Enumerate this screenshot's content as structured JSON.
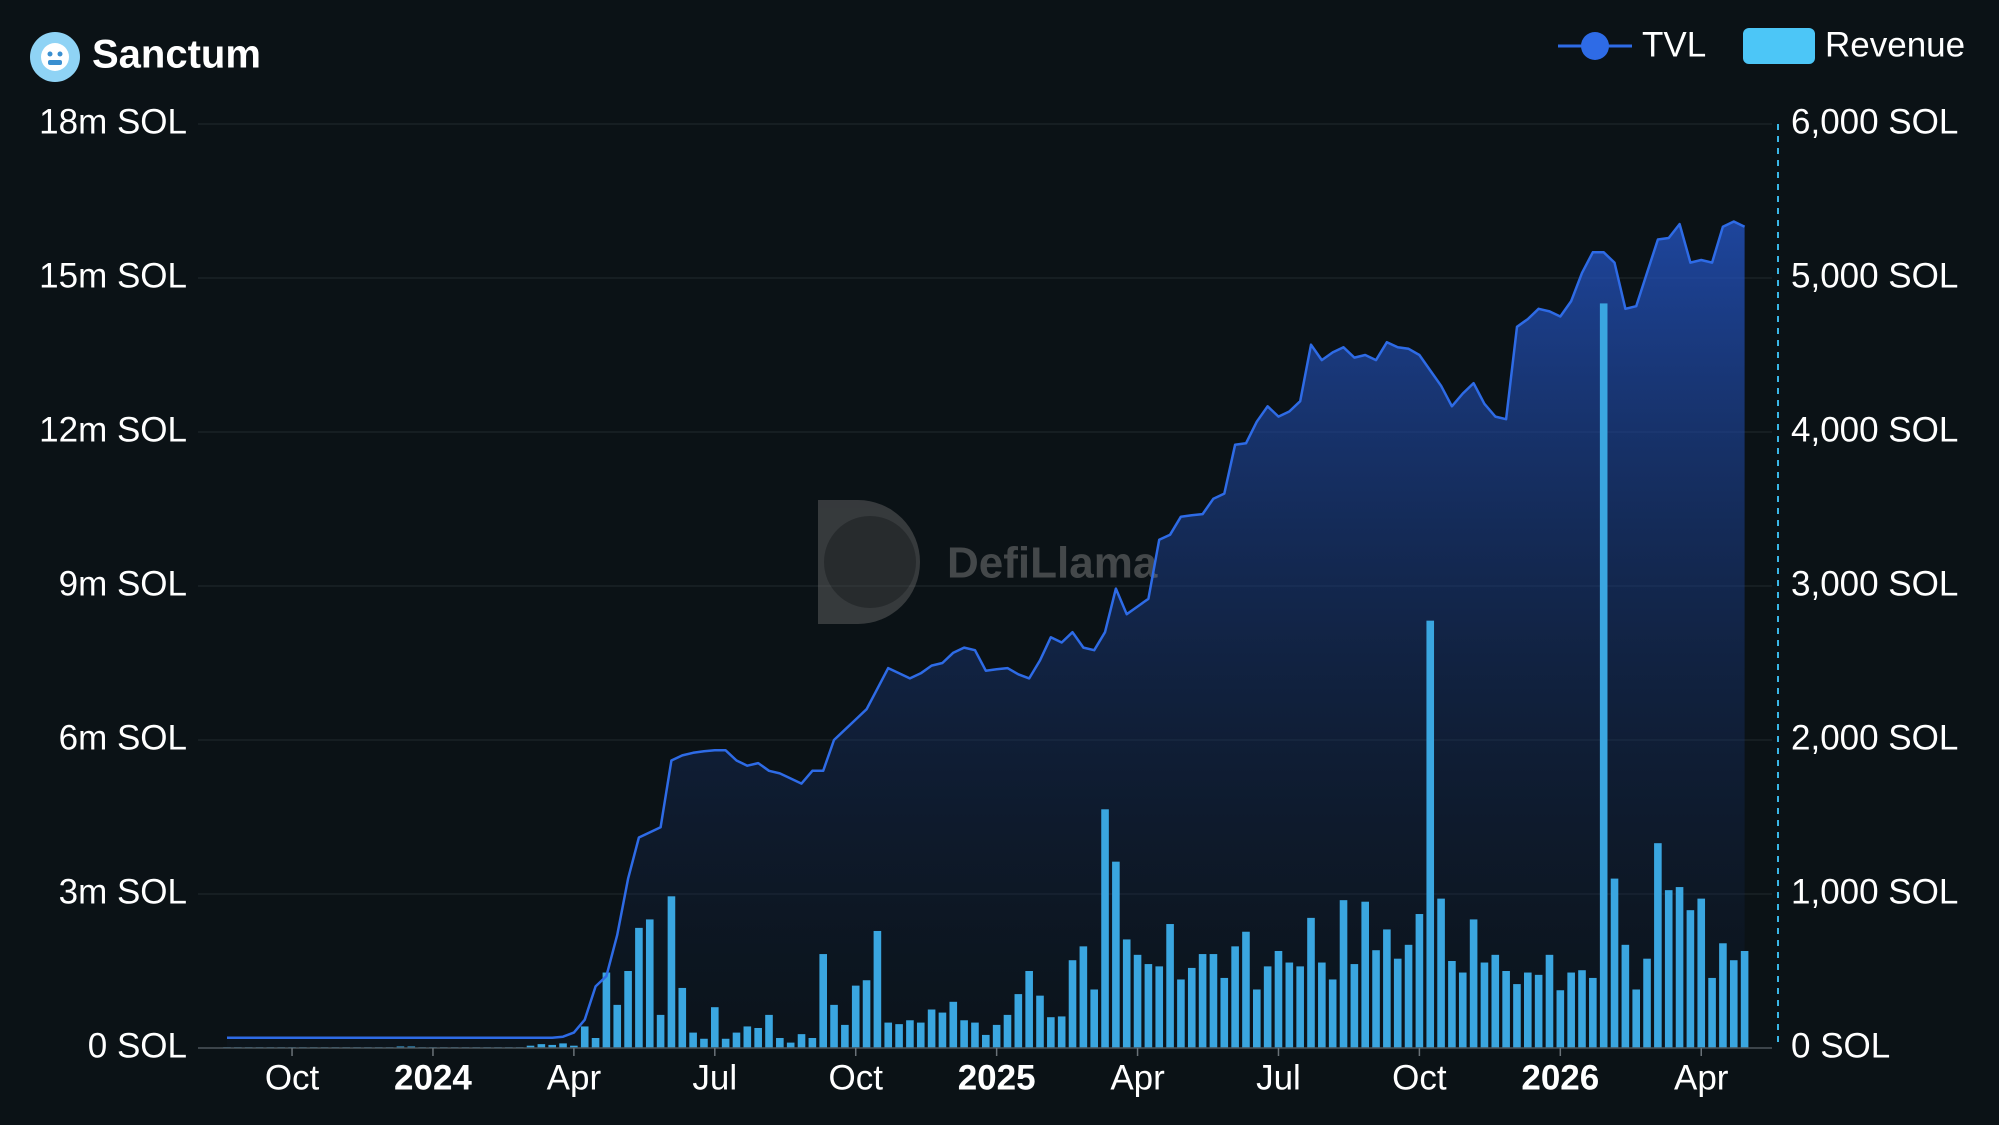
{
  "chart_data": {
    "type": "combo",
    "title": "Sanctum",
    "watermark": "DefiLlama",
    "categories": [
      null,
      null,
      null,
      null,
      null,
      null,
      "Oct",
      null,
      null,
      null,
      null,
      null,
      null,
      null,
      null,
      null,
      null,
      null,
      null,
      "2024",
      null,
      null,
      null,
      null,
      null,
      null,
      null,
      null,
      null,
      null,
      null,
      null,
      "Apr",
      null,
      null,
      null,
      null,
      null,
      null,
      null,
      null,
      null,
      null,
      null,
      null,
      "Jul",
      null,
      null,
      null,
      null,
      null,
      null,
      null,
      null,
      null,
      null,
      null,
      null,
      "Oct",
      null,
      null,
      null,
      null,
      null,
      null,
      null,
      null,
      null,
      null,
      null,
      null,
      "2025",
      null,
      null,
      null,
      null,
      null,
      null,
      null,
      null,
      null,
      null,
      null,
      null,
      "Apr",
      null,
      null,
      null,
      null,
      null,
      null,
      null,
      null,
      null,
      null,
      null,
      null,
      "Jul",
      null,
      null,
      null,
      null,
      null,
      null,
      null,
      null,
      null,
      null,
      null,
      null,
      "Oct",
      null,
      null,
      null,
      null,
      null,
      null,
      null,
      null,
      null,
      null,
      null,
      null,
      "2026",
      null,
      null,
      null,
      null,
      null,
      null,
      null,
      null,
      null,
      null,
      null,
      null,
      "Apr",
      null,
      null,
      null,
      null
    ],
    "series": [
      {
        "name": "TVL",
        "type": "area",
        "axis": "y",
        "color": "#2e6be6",
        "values": [
          200000,
          200000,
          200000,
          200000,
          200000,
          200000,
          200000,
          200000,
          200000,
          200000,
          200000,
          200000,
          200000,
          200000,
          200000,
          200000,
          200000,
          200000,
          200000,
          200000,
          200000,
          200000,
          200000,
          200000,
          200000,
          200000,
          200000,
          200000,
          200000,
          200000,
          200000,
          220000,
          300000,
          550000,
          1200000,
          1400000,
          2200000,
          3300000,
          4100000,
          4200000,
          4300000,
          5600000,
          5700000,
          5750000,
          5780000,
          5800000,
          5800000,
          5600000,
          5500000,
          5550000,
          5400000,
          5350000,
          5250000,
          5150000,
          5400000,
          5400000,
          6000000,
          6200000,
          6400000,
          6600000,
          7000000,
          7400000,
          7300000,
          7200000,
          7300000,
          7450000,
          7500000,
          7700000,
          7800000,
          7750000,
          7350000,
          7380000,
          7400000,
          7280000,
          7200000,
          7550000,
          8000000,
          7900000,
          8100000,
          7800000,
          7750000,
          8100000,
          8950000,
          8450000,
          8600000,
          8750000,
          9900000,
          10000000,
          10350000,
          10380000,
          10400000,
          10700000,
          10800000,
          11750000,
          11780000,
          12200000,
          12500000,
          12300000,
          12400000,
          12600000,
          13700000,
          13400000,
          13550000,
          13650000,
          13450000,
          13500000,
          13400000,
          13750000,
          13650000,
          13620000,
          13500000,
          13200000,
          12900000,
          12500000,
          12750000,
          12950000,
          12550000,
          12300000,
          12250000,
          14050000,
          14200000,
          14400000,
          14350000,
          14250000,
          14550000,
          15100000,
          15500000,
          15500000,
          15300000,
          14400000,
          14450000,
          15100000,
          15750000,
          15780000,
          16050000,
          15300000,
          15350000,
          15300000,
          16000000,
          16100000,
          16000000
        ]
      },
      {
        "name": "Revenue",
        "type": "bar",
        "axis": "y2",
        "color": "#3aa6e0",
        "legend_color": "#4cc6f7",
        "values": [
          5,
          5,
          5,
          5,
          5,
          5,
          5,
          5,
          5,
          5,
          5,
          5,
          5,
          5,
          5,
          5,
          10,
          10,
          5,
          5,
          5,
          5,
          5,
          5,
          5,
          5,
          5,
          5,
          15,
          25,
          20,
          30,
          15,
          140,
          65,
          490,
          280,
          500,
          780,
          835,
          215,
          985,
          390,
          100,
          60,
          265,
          60,
          100,
          140,
          130,
          215,
          65,
          35,
          90,
          65,
          610,
          280,
          150,
          405,
          440,
          760,
          165,
          155,
          180,
          165,
          250,
          230,
          300,
          180,
          165,
          85,
          150,
          215,
          350,
          500,
          340,
          200,
          205,
          570,
          660,
          380,
          1550,
          1210,
          705,
          605,
          545,
          530,
          805,
          445,
          520,
          610,
          610,
          455,
          660,
          755,
          380,
          530,
          630,
          555,
          530,
          845,
          555,
          445,
          960,
          545,
          950,
          635,
          770,
          580,
          670,
          870,
          2775,
          970,
          565,
          490,
          835,
          555,
          605,
          500,
          415,
          490,
          475,
          605,
          375,
          490,
          505,
          455,
          4835,
          1100,
          670,
          380,
          580,
          1330,
          1025,
          1045,
          895,
          970,
          455,
          680,
          570,
          630
        ]
      }
    ],
    "ylim": [
      0,
      18000000
    ],
    "yticks": [
      {
        "value": 0,
        "label": "0 SOL"
      },
      {
        "value": 3000000,
        "label": "3m SOL"
      },
      {
        "value": 6000000,
        "label": "6m SOL"
      },
      {
        "value": 9000000,
        "label": "9m SOL"
      },
      {
        "value": 12000000,
        "label": "12m SOL"
      },
      {
        "value": 15000000,
        "label": "15m SOL"
      },
      {
        "value": 18000000,
        "label": "18m SOL"
      }
    ],
    "y2lim": [
      0,
      6000
    ],
    "y2ticks": [
      {
        "value": 0,
        "label": "0 SOL"
      },
      {
        "value": 1000,
        "label": "1,000 SOL"
      },
      {
        "value": 2000,
        "label": "2,000 SOL"
      },
      {
        "value": 3000,
        "label": "3,000 SOL"
      },
      {
        "value": 4000,
        "label": "4,000 SOL"
      },
      {
        "value": 5000,
        "label": "5,000 SOL"
      },
      {
        "value": 6000,
        "label": "6,000 SOL"
      }
    ],
    "grid": true,
    "legend": "top-right"
  }
}
